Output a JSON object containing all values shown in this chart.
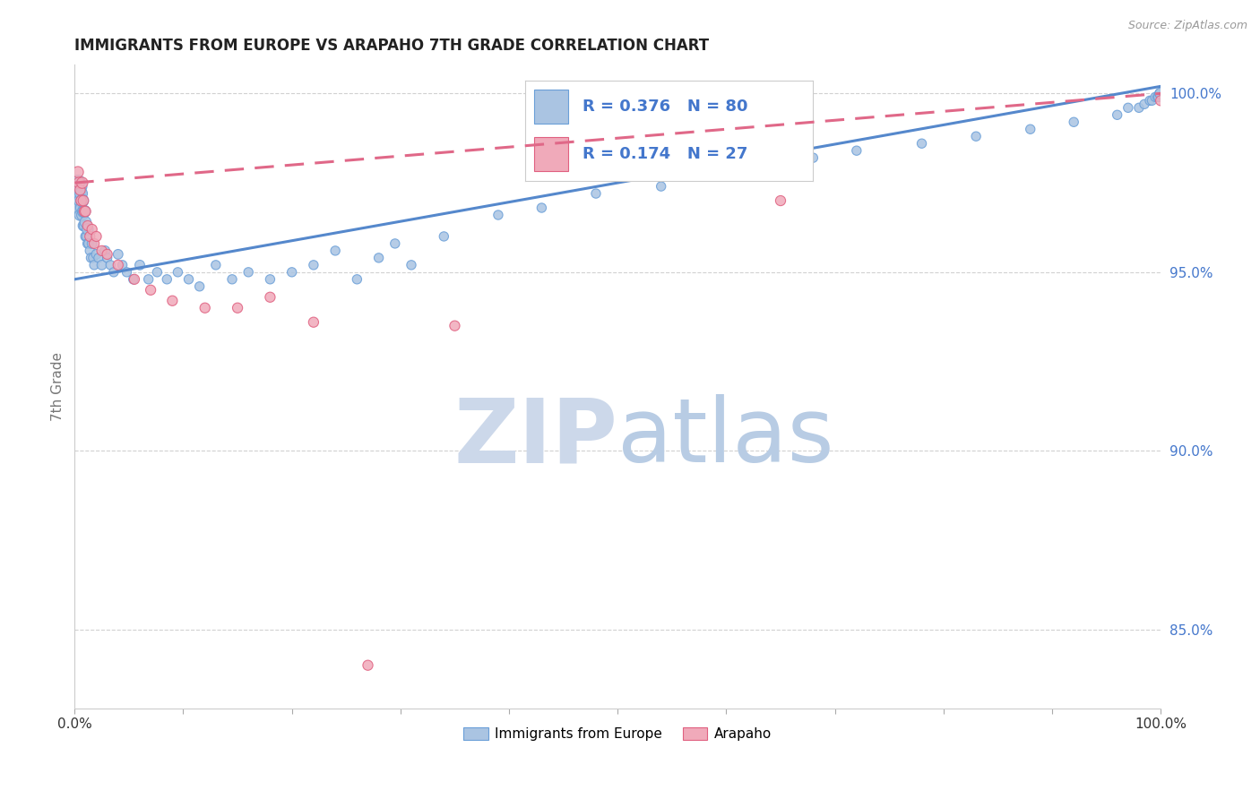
{
  "title": "IMMIGRANTS FROM EUROPE VS ARAPAHO 7TH GRADE CORRELATION CHART",
  "source_text": "Source: ZipAtlas.com",
  "ylabel": "7th Grade",
  "xlim": [
    0,
    1.0
  ],
  "ylim": [
    0.828,
    1.008
  ],
  "yticks": [
    0.85,
    0.9,
    0.95,
    1.0
  ],
  "ytick_labels": [
    "85.0%",
    "90.0%",
    "95.0%",
    "100.0%"
  ],
  "xticks": [
    0.0,
    0.1,
    0.2,
    0.3,
    0.4,
    0.5,
    0.6,
    0.7,
    0.8,
    0.9,
    1.0
  ],
  "xtick_labels": [
    "0.0%",
    "",
    "",
    "",
    "",
    "",
    "",
    "",
    "",
    "",
    "100.0%"
  ],
  "blue_label": "Immigrants from Europe",
  "pink_label": "Arapaho",
  "blue_R": 0.376,
  "blue_N": 80,
  "pink_R": 0.174,
  "pink_N": 27,
  "blue_color": "#aac4e2",
  "pink_color": "#f0aaba",
  "blue_edge_color": "#6a9fd8",
  "pink_edge_color": "#e06080",
  "blue_line_color": "#5588cc",
  "pink_line_color": "#e06888",
  "legend_text_color": "#4477cc",
  "watermark_color": "#dde8f4",
  "background_color": "#ffffff",
  "grid_color": "#cccccc",
  "blue_trend": [
    0.948,
    1.002
  ],
  "pink_trend": [
    0.975,
    1.0
  ],
  "blue_x": [
    0.003,
    0.003,
    0.004,
    0.004,
    0.005,
    0.005,
    0.005,
    0.006,
    0.006,
    0.007,
    0.007,
    0.008,
    0.008,
    0.009,
    0.009,
    0.01,
    0.01,
    0.011,
    0.012,
    0.012,
    0.013,
    0.014,
    0.015,
    0.016,
    0.017,
    0.018,
    0.02,
    0.022,
    0.025,
    0.028,
    0.03,
    0.033,
    0.036,
    0.04,
    0.044,
    0.048,
    0.054,
    0.06,
    0.068,
    0.076,
    0.085,
    0.095,
    0.105,
    0.115,
    0.13,
    0.145,
    0.16,
    0.18,
    0.2,
    0.22,
    0.24,
    0.26,
    0.28,
    0.295,
    0.31,
    0.34,
    0.39,
    0.43,
    0.48,
    0.54,
    0.6,
    0.64,
    0.68,
    0.72,
    0.78,
    0.83,
    0.88,
    0.92,
    0.96,
    0.97,
    0.98,
    0.985,
    0.99,
    0.992,
    0.995,
    0.997,
    0.998,
    0.999,
    0.999,
    1.0
  ],
  "blue_y": [
    0.97,
    0.975,
    0.968,
    0.972,
    0.966,
    0.97,
    0.974,
    0.968,
    0.972,
    0.966,
    0.97,
    0.963,
    0.967,
    0.963,
    0.967,
    0.96,
    0.964,
    0.96,
    0.958,
    0.962,
    0.958,
    0.956,
    0.954,
    0.958,
    0.954,
    0.952,
    0.955,
    0.954,
    0.952,
    0.956,
    0.954,
    0.952,
    0.95,
    0.955,
    0.952,
    0.95,
    0.948,
    0.952,
    0.948,
    0.95,
    0.948,
    0.95,
    0.948,
    0.946,
    0.952,
    0.948,
    0.95,
    0.948,
    0.95,
    0.952,
    0.956,
    0.948,
    0.954,
    0.958,
    0.952,
    0.96,
    0.966,
    0.968,
    0.972,
    0.974,
    0.978,
    0.98,
    0.982,
    0.984,
    0.986,
    0.988,
    0.99,
    0.992,
    0.994,
    0.996,
    0.996,
    0.997,
    0.998,
    0.998,
    0.999,
    0.999,
    0.999,
    1.0,
    1.0,
    1.0
  ],
  "blue_sizes": [
    120,
    150,
    100,
    130,
    80,
    100,
    120,
    80,
    100,
    80,
    100,
    70,
    90,
    70,
    90,
    60,
    80,
    60,
    60,
    80,
    60,
    55,
    55,
    60,
    55,
    55,
    60,
    55,
    60,
    60,
    55,
    55,
    55,
    60,
    55,
    55,
    55,
    60,
    55,
    55,
    55,
    55,
    55,
    55,
    55,
    55,
    55,
    55,
    55,
    55,
    55,
    55,
    55,
    55,
    55,
    55,
    55,
    55,
    55,
    55,
    55,
    55,
    55,
    55,
    55,
    55,
    55,
    55,
    55,
    55,
    55,
    55,
    55,
    55,
    55,
    55,
    55,
    55,
    55,
    80
  ],
  "pink_x": [
    0.003,
    0.004,
    0.005,
    0.006,
    0.007,
    0.008,
    0.009,
    0.01,
    0.012,
    0.014,
    0.016,
    0.018,
    0.02,
    0.025,
    0.03,
    0.04,
    0.055,
    0.07,
    0.09,
    0.12,
    0.15,
    0.18,
    0.22,
    0.27,
    0.35,
    0.65,
    1.0
  ],
  "pink_y": [
    0.978,
    0.975,
    0.973,
    0.97,
    0.975,
    0.97,
    0.967,
    0.967,
    0.963,
    0.96,
    0.962,
    0.958,
    0.96,
    0.956,
    0.955,
    0.952,
    0.948,
    0.945,
    0.942,
    0.94,
    0.94,
    0.943,
    0.936,
    0.84,
    0.935,
    0.97,
    0.998
  ],
  "pink_sizes": [
    80,
    80,
    70,
    70,
    80,
    70,
    70,
    70,
    65,
    65,
    65,
    65,
    65,
    65,
    65,
    65,
    65,
    65,
    65,
    65,
    65,
    65,
    65,
    65,
    65,
    65,
    65
  ]
}
